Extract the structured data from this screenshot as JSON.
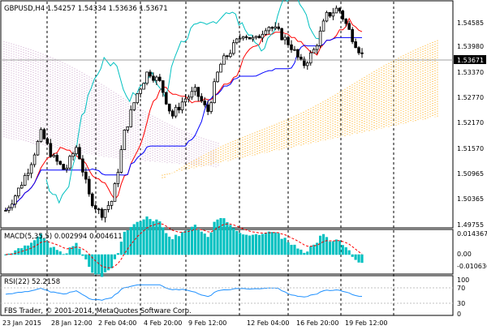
{
  "main": {
    "symbol_line": "GBPUSD,H4  1.54257 1.54334 1.53636 1.53671",
    "price_badge": "1.53671",
    "price_ticks": [
      "1.54585",
      "1.53980",
      "1.53370",
      "1.52770",
      "1.52170",
      "1.51570",
      "1.50965",
      "1.50365",
      "1.49755"
    ]
  },
  "macd": {
    "label": "MACD(5,35,5) 0.002994 0.004611",
    "ticks": [
      "0.014367",
      "0.00",
      "-0.010636"
    ]
  },
  "rsi": {
    "label": "RSI(22) 52.2158",
    "ticks": [
      "100",
      "70",
      "30",
      "0"
    ]
  },
  "footer": {
    "copyright": "FBS Trader, © 2001-2014, MetaQuotes Software Corp."
  },
  "time_ticks": [
    "23 Jan 2015",
    "28 Jan 12:00",
    "2 Feb 04:00",
    "4 Feb 20:00",
    "9 Feb 12:00",
    "12 Feb 04:00",
    "16 Feb 20:00",
    "19 Feb 12:00"
  ],
  "colors": {
    "candle": "#000000",
    "tenkan": "#ff0000",
    "kijun": "#0000ff",
    "chikou": "#00c0c0",
    "kumo_a": "#ffa500",
    "kumo_b": "#c8a0c8",
    "macd_hist": "#00c0c0",
    "macd_signal": "#ff0000",
    "rsi_line": "#1e90ff"
  },
  "chart_data": {
    "type": "candlestick",
    "x": [
      "23 Jan 2015",
      "28 Jan 12:00",
      "2 Feb 04:00",
      "4 Feb 20:00",
      "9 Feb 12:00",
      "12 Feb 04:00",
      "16 Feb 20:00",
      "19 Feb 12:00"
    ],
    "close_path": [
      1.4995,
      1.504,
      1.51,
      1.518,
      1.512,
      1.509,
      1.515,
      1.503,
      1.4985,
      1.502,
      1.518,
      1.527,
      1.533,
      1.53,
      1.522,
      1.526,
      1.528,
      1.523,
      1.534,
      1.538,
      1.542,
      1.54,
      1.544,
      1.542,
      1.539,
      1.534,
      1.538,
      1.546,
      1.548,
      1.542,
      1.5367
    ],
    "price_range": [
      1.4955,
      1.5495
    ],
    "macd_range": [
      -0.0125,
      0.016
    ],
    "rsi_levels": [
      70,
      30
    ]
  }
}
